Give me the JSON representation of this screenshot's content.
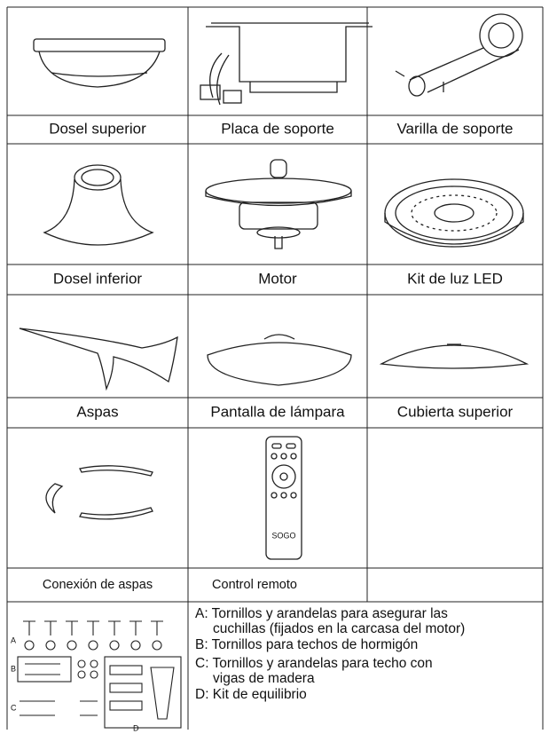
{
  "items": [
    {
      "label": "Dosel superior"
    },
    {
      "label": "Placa de soporte"
    },
    {
      "label": "Varilla de soporte"
    },
    {
      "label": "Dosel inferior"
    },
    {
      "label": "Motor"
    },
    {
      "label": "Kit de luz LED"
    },
    {
      "label": "Aspas"
    },
    {
      "label": "Pantalla de lámpara"
    },
    {
      "label": "Cubierta superior"
    },
    {
      "label": "Conexión de aspas"
    },
    {
      "label": "Control remoto"
    }
  ],
  "remote_brand": "SOGO",
  "hardware": {
    "markers": [
      "A",
      "B",
      "C",
      "D"
    ],
    "notes": [
      "A: Tornillos y arandelas para asegurar las",
      "cuchillas (fijados en la carcasa del motor)",
      "B: Tornillos para techos de hormigón",
      "C: Tornillos y arandelas para techo con",
      "vigas de madera",
      "D: Kit de equilibrio"
    ]
  }
}
